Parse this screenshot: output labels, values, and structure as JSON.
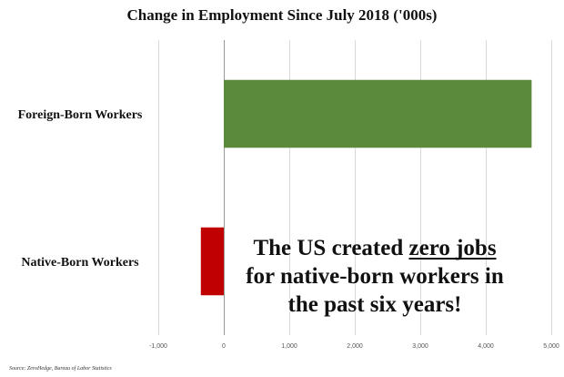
{
  "chart_data": {
    "type": "bar",
    "orientation": "horizontal",
    "title": "Change in Employment Since July 2018 ('000s)",
    "categories": [
      "Foreign-Born Workers",
      "Native-Born Workers"
    ],
    "values": [
      4700,
      -350
    ],
    "xlim": [
      -1000,
      5000
    ],
    "xticks": [
      "-1,000",
      "0",
      "1,000",
      "2,000",
      "3,000",
      "4,000",
      "5,000"
    ],
    "tick_values": [
      -1000,
      0,
      1000,
      2000,
      3000,
      4000,
      5000
    ],
    "colors": [
      "#5b8a3a",
      "#c00000"
    ],
    "grid": true,
    "source": "Source: ZeroHedge, Bureau of Labor Statistics",
    "annotation": {
      "line1_prefix": "The US created ",
      "line1_emphasis": "zero jobs",
      "line2": "for native-born workers in",
      "line3": "the past six years!"
    }
  }
}
